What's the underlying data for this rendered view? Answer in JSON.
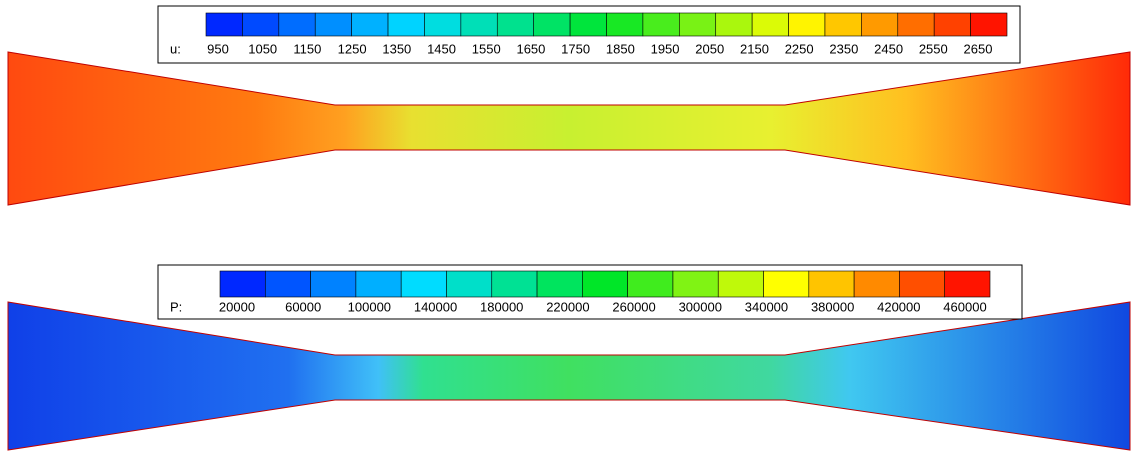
{
  "panels": [
    {
      "variable": "u:",
      "levels": [
        950,
        1050,
        1150,
        1250,
        1350,
        1450,
        1550,
        1650,
        1750,
        1850,
        1950,
        2050,
        2150,
        2250,
        2350,
        2450,
        2550,
        2650
      ]
    },
    {
      "variable": "P:",
      "levels": [
        20000,
        60000,
        100000,
        140000,
        180000,
        220000,
        260000,
        300000,
        340000,
        380000,
        420000,
        460000
      ]
    }
  ]
}
